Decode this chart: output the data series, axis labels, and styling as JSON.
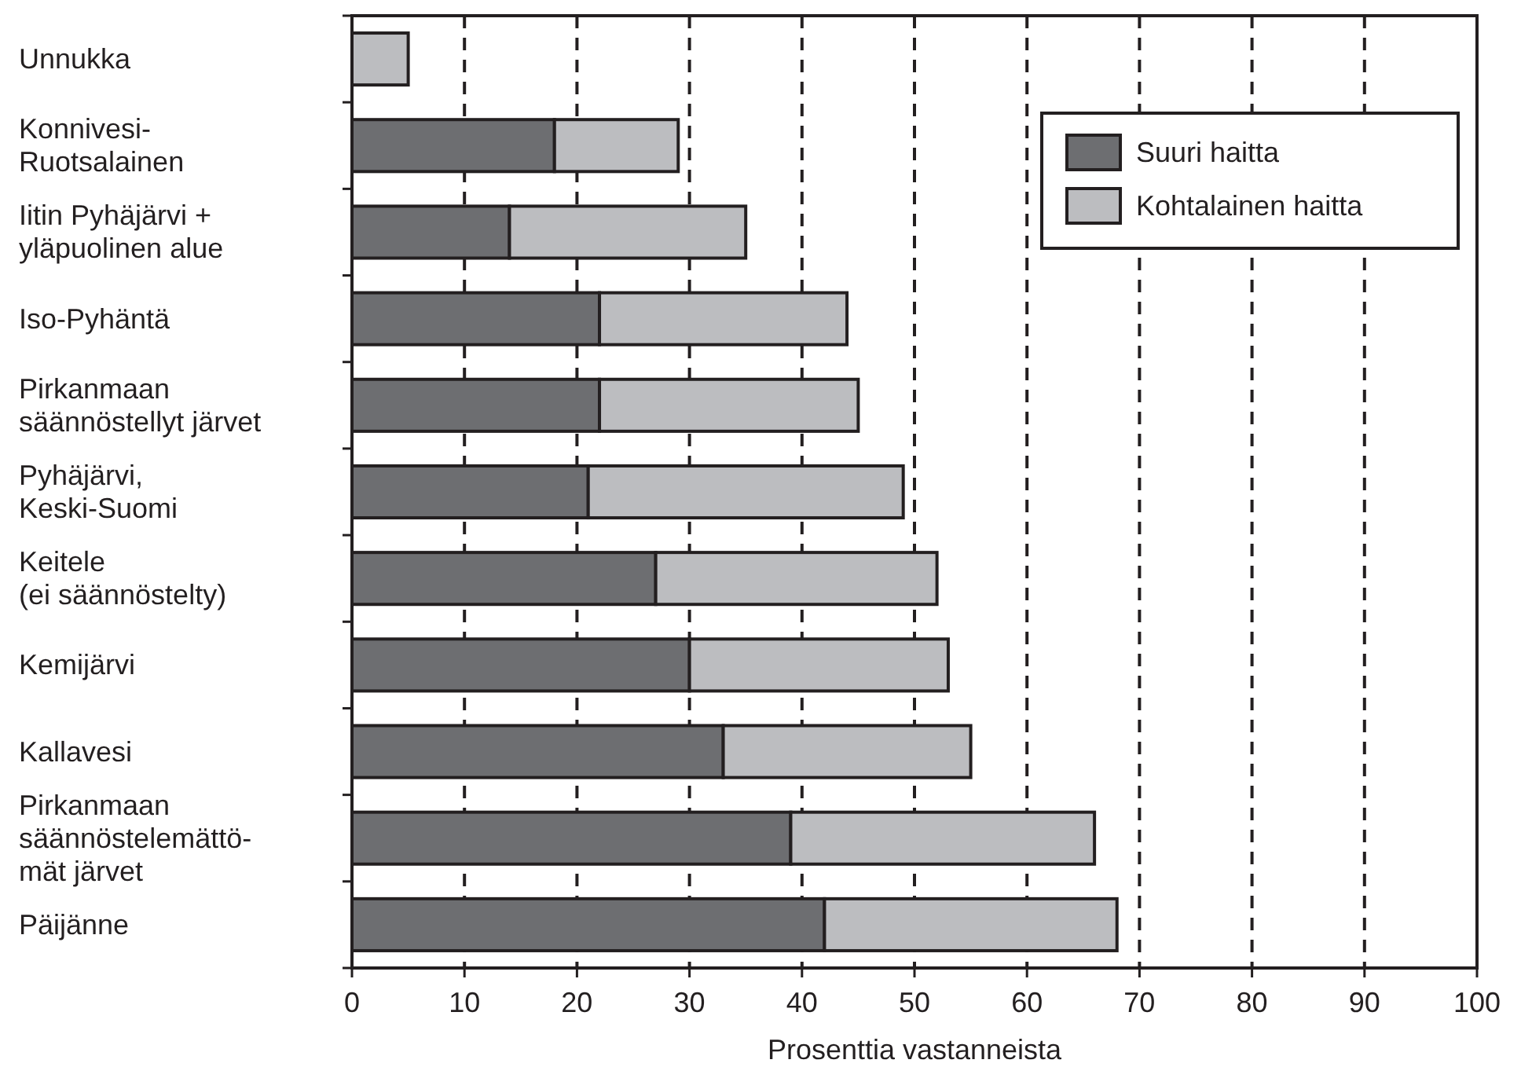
{
  "chart_data": {
    "type": "bar",
    "orientation": "horizontal",
    "stacked": true,
    "xlabel": "Prosenttia vastanneista",
    "categories": [
      "Unnukka",
      "Konnivesi-\nRuotsalainen",
      "Iitin Pyhäjärvi +\nyläpuolinen alue",
      "Iso-Pyhäntä",
      "Pirkanmaan\nsäännöstellyt järvet",
      "Pyhäjärvi,\nKeski-Suomi",
      "Keitele\n(ei säännöstelty)",
      "Kemijärvi",
      "Kallavesi",
      "Pirkanmaan\nsäännöstelemättö-\nmät järvet",
      "Päijänne"
    ],
    "series": [
      {
        "name": "Suuri haitta",
        "color": "#6d6e71",
        "values": [
          0,
          18,
          14,
          22,
          22,
          21,
          27,
          30,
          33,
          39,
          42
        ]
      },
      {
        "name": "Kohtalainen haitta",
        "color": "#bcbdc0",
        "values": [
          5,
          11,
          21,
          22,
          23,
          28,
          25,
          23,
          22,
          27,
          26
        ]
      }
    ],
    "xlim": [
      0,
      100
    ],
    "xticks": [
      0,
      10,
      20,
      30,
      40,
      50,
      60,
      70,
      80,
      90,
      100
    ],
    "grid": "x",
    "legend": "top right"
  }
}
